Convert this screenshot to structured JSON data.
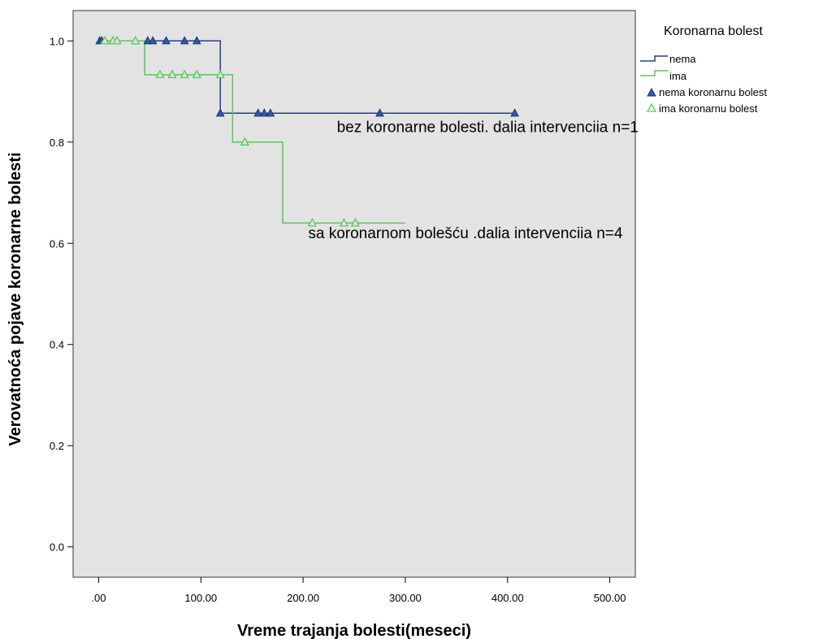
{
  "chart_data": {
    "type": "line",
    "subtype": "kaplan-meier-step",
    "xlabel": "Vreme trajanja bolesti(meseci)",
    "ylabel": "Verovatnoća pojave koronarne bolesti",
    "xlim": [
      -25,
      525
    ],
    "ylim": [
      -0.06,
      1.06
    ],
    "xticks": [
      0,
      100,
      200,
      300,
      400,
      500
    ],
    "xtick_labels": [
      ".00",
      "100.00",
      "200.00",
      "300.00",
      "400.00",
      "500.00"
    ],
    "yticks": [
      0.0,
      0.2,
      0.4,
      0.6,
      0.8,
      1.0
    ],
    "ytick_labels": [
      "0.0",
      "0.2",
      "0.4",
      "0.6",
      "0.8",
      "1.0"
    ],
    "grid": false,
    "background": "#e3e3e3",
    "legend": {
      "title": "Koronarna bolest",
      "position": "top-right-outside",
      "entries": [
        {
          "label": "nema",
          "kind": "line",
          "color": "#2b3a8f"
        },
        {
          "label": "ima",
          "kind": "line",
          "color": "#55c95a"
        },
        {
          "label": "nema koronarnu bolest",
          "kind": "filled-triangle",
          "color": "#2b3a8f"
        },
        {
          "label": "ima koronarnu bolest",
          "kind": "open-triangle",
          "color": "#55c95a"
        }
      ]
    },
    "series": [
      {
        "name": "nema",
        "color": "#2b3a8f",
        "marker": "filled-triangle",
        "steps": [
          [
            0,
            1.0
          ],
          [
            119,
            1.0
          ],
          [
            119,
            0.857
          ],
          [
            407,
            0.857
          ]
        ],
        "censored": [
          [
            1,
            1.0
          ],
          [
            3,
            1.0
          ],
          [
            48,
            1.0
          ],
          [
            53,
            1.0
          ],
          [
            66,
            1.0
          ],
          [
            84,
            1.0
          ],
          [
            96,
            1.0
          ],
          [
            119,
            0.857
          ],
          [
            156,
            0.857
          ],
          [
            162,
            0.857
          ],
          [
            168,
            0.857
          ],
          [
            275,
            0.857
          ],
          [
            407,
            0.857
          ]
        ]
      },
      {
        "name": "ima",
        "color": "#55c95a",
        "marker": "open-triangle",
        "steps": [
          [
            0,
            1.0
          ],
          [
            45,
            1.0
          ],
          [
            45,
            0.933
          ],
          [
            131,
            0.933
          ],
          [
            131,
            0.8
          ],
          [
            180,
            0.8
          ],
          [
            180,
            0.64
          ],
          [
            300,
            0.64
          ]
        ],
        "censored": [
          [
            6,
            1.0
          ],
          [
            14,
            1.0
          ],
          [
            18,
            1.0
          ],
          [
            36,
            1.0
          ],
          [
            60,
            0.933
          ],
          [
            72,
            0.933
          ],
          [
            84,
            0.933
          ],
          [
            96,
            0.933
          ],
          [
            119,
            0.933
          ],
          [
            143,
            0.8
          ],
          [
            209,
            0.64
          ],
          [
            240,
            0.64
          ],
          [
            251,
            0.64
          ]
        ]
      }
    ],
    "annotations": [
      {
        "text": "bez  koronarne bolesti. dalia intervenciia n=1",
        "x": 233,
        "y": 0.82
      },
      {
        "text": "sa koronarnom bolešću .dalia intervenciia n=4",
        "x": 205,
        "y": 0.61
      }
    ]
  }
}
